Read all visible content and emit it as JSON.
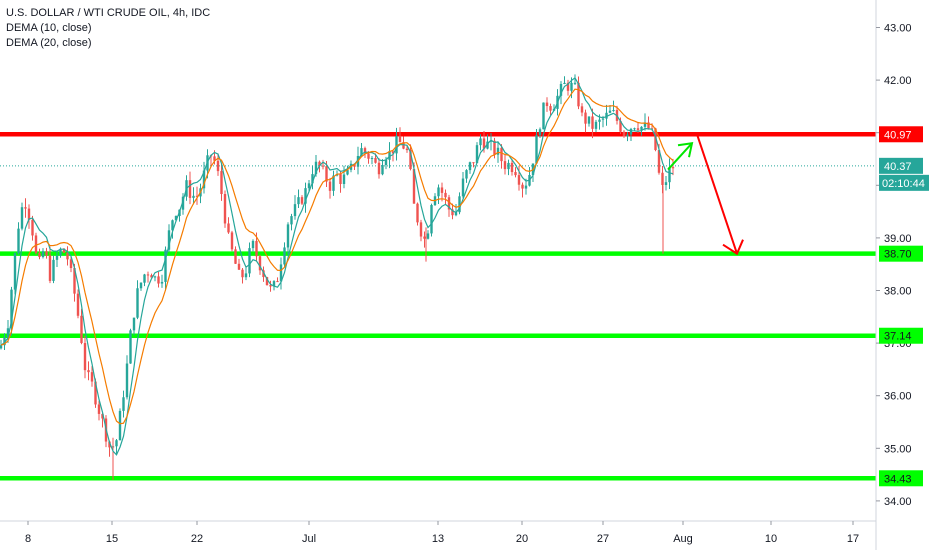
{
  "legend": {
    "symbol_line": "U.S. DOLLAR / WTI CRUDE OIL, 4h, IDC",
    "indicator_1": "DEMA (10, close)",
    "indicator_2": "DEMA (20, close)"
  },
  "colors": {
    "up_candle": "#26a69a",
    "down_candle": "#ef5350",
    "resistance": "#ff0000",
    "support": "#00ff00",
    "dema_10": "#26a69a",
    "dema_20": "#f57c00",
    "last_price": "#26a69a",
    "arrow_up": "#00e600",
    "arrow_down": "#ff0000"
  },
  "chart_data": {
    "type": "candlestick",
    "y_ticks": [
      "43.00",
      "42.00",
      "41.00",
      "40.00",
      "39.00",
      "38.00",
      "37.00",
      "36.00",
      "35.00",
      "34.00"
    ],
    "y_tick_values": [
      43,
      42,
      41,
      40,
      39,
      38,
      37,
      36,
      35,
      34
    ],
    "ylim": [
      33.55,
      43.35
    ],
    "x_ticks": [
      "8",
      "15",
      "22",
      "Jul",
      "13",
      "20",
      "27",
      "Aug",
      "10",
      "17"
    ],
    "horizontal_levels": [
      {
        "label": "40.97",
        "value": 40.97,
        "kind": "resistance"
      },
      {
        "label": "38.70",
        "value": 38.7,
        "kind": "support"
      },
      {
        "label": "37.14",
        "value": 37.14,
        "kind": "support"
      },
      {
        "label": "34.43",
        "value": 34.43,
        "kind": "support"
      }
    ],
    "last_price": {
      "label": "40.37",
      "value": 40.37,
      "countdown": "02:10:44"
    },
    "series_anchors": [
      [
        0,
        36.9
      ],
      [
        8,
        37.4
      ],
      [
        14,
        38.5
      ],
      [
        20,
        39.5
      ],
      [
        26,
        39.7
      ],
      [
        32,
        39.2
      ],
      [
        38,
        38.4
      ],
      [
        44,
        38.8
      ],
      [
        50,
        38.3
      ],
      [
        56,
        38.6
      ],
      [
        62,
        38.8
      ],
      [
        68,
        38.6
      ],
      [
        74,
        38.0
      ],
      [
        80,
        37.3
      ],
      [
        86,
        36.4
      ],
      [
        92,
        36.2
      ],
      [
        98,
        35.8
      ],
      [
        104,
        35.4
      ],
      [
        110,
        35.0
      ],
      [
        116,
        35.1
      ],
      [
        120,
        35.6
      ],
      [
        126,
        36.4
      ],
      [
        132,
        37.4
      ],
      [
        138,
        38.0
      ],
      [
        144,
        38.3
      ],
      [
        150,
        38.4
      ],
      [
        156,
        38.2
      ],
      [
        162,
        38.3
      ],
      [
        168,
        39.0
      ],
      [
        174,
        39.5
      ],
      [
        180,
        39.6
      ],
      [
        186,
        40.0
      ],
      [
        192,
        39.8
      ],
      [
        198,
        39.8
      ],
      [
        204,
        40.2
      ],
      [
        210,
        40.6
      ],
      [
        216,
        40.4
      ],
      [
        222,
        39.8
      ],
      [
        228,
        39.0
      ],
      [
        234,
        38.6
      ],
      [
        240,
        38.2
      ],
      [
        246,
        38.4
      ],
      [
        252,
        38.9
      ],
      [
        258,
        38.6
      ],
      [
        264,
        38.3
      ],
      [
        270,
        38.0
      ],
      [
        276,
        38.1
      ],
      [
        282,
        38.7
      ],
      [
        288,
        39.3
      ],
      [
        294,
        39.5
      ],
      [
        300,
        39.7
      ],
      [
        306,
        39.9
      ],
      [
        312,
        40.3
      ],
      [
        318,
        40.4
      ],
      [
        324,
        40.2
      ],
      [
        330,
        40.0
      ],
      [
        336,
        40.2
      ],
      [
        342,
        40.1
      ],
      [
        348,
        40.2
      ],
      [
        354,
        40.4
      ],
      [
        360,
        40.7
      ],
      [
        366,
        40.6
      ],
      [
        372,
        40.5
      ],
      [
        378,
        40.3
      ],
      [
        384,
        40.6
      ],
      [
        390,
        40.6
      ],
      [
        396,
        40.8
      ],
      [
        402,
        40.8
      ],
      [
        408,
        40.6
      ],
      [
        414,
        39.6
      ],
      [
        420,
        39.2
      ],
      [
        426,
        38.9
      ],
      [
        432,
        39.8
      ],
      [
        438,
        40.0
      ],
      [
        444,
        39.8
      ],
      [
        450,
        39.5
      ],
      [
        456,
        39.5
      ],
      [
        462,
        40.0
      ],
      [
        468,
        40.3
      ],
      [
        474,
        40.5
      ],
      [
        480,
        40.9
      ],
      [
        486,
        40.8
      ],
      [
        492,
        40.7
      ],
      [
        498,
        40.6
      ],
      [
        504,
        40.4
      ],
      [
        510,
        40.4
      ],
      [
        516,
        40.3
      ],
      [
        522,
        40.0
      ],
      [
        528,
        40.1
      ],
      [
        534,
        40.6
      ],
      [
        540,
        41.2
      ],
      [
        546,
        41.6
      ],
      [
        552,
        41.5
      ],
      [
        558,
        41.7
      ],
      [
        564,
        41.9
      ],
      [
        570,
        41.9
      ],
      [
        576,
        41.8
      ],
      [
        582,
        41.3
      ],
      [
        588,
        41.2
      ],
      [
        594,
        41.1
      ],
      [
        600,
        41.2
      ],
      [
        606,
        41.3
      ],
      [
        612,
        41.4
      ],
      [
        618,
        41.2
      ],
      [
        624,
        41.0
      ],
      [
        630,
        41.1
      ],
      [
        636,
        41.2
      ],
      [
        642,
        41.1
      ],
      [
        648,
        41.1
      ],
      [
        654,
        40.9
      ],
      [
        658,
        40.3
      ],
      [
        662,
        39.9
      ],
      [
        666,
        40.1
      ],
      [
        670,
        40.3
      ],
      [
        674,
        40.37
      ]
    ],
    "annotations": {
      "arrow_up": {
        "from": [
          668,
          40.3
        ],
        "to": [
          692,
          40.8
        ]
      },
      "arrow_down": {
        "from": [
          697,
          40.97
        ],
        "to": [
          737,
          38.7
        ]
      }
    }
  }
}
